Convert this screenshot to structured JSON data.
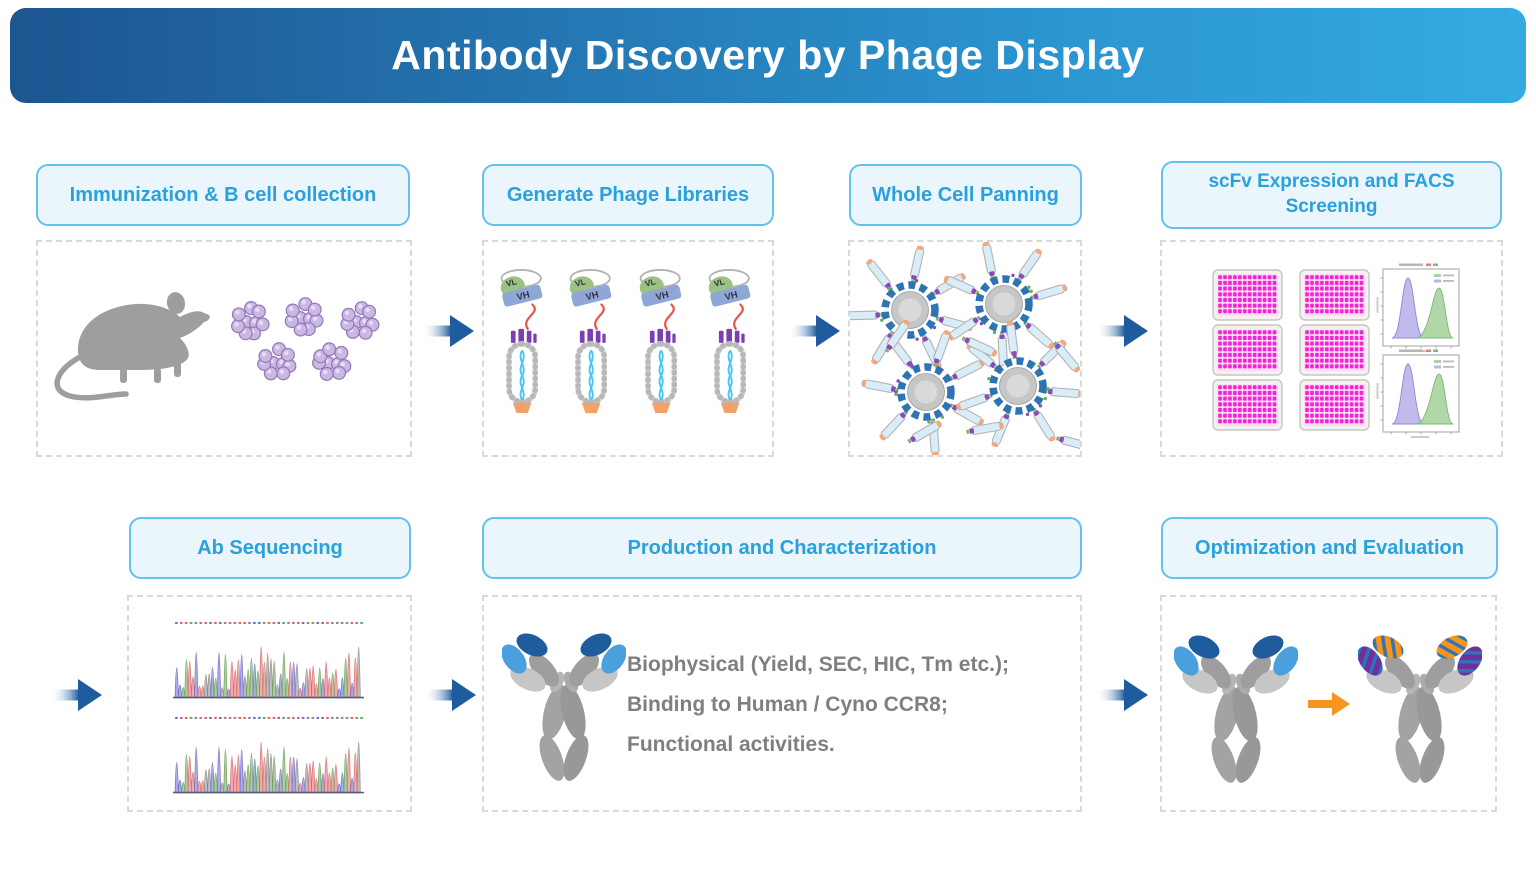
{
  "header": {
    "title": "Antibody Discovery by Phage Display"
  },
  "steps": [
    {
      "label": "Immunization & B cell collection"
    },
    {
      "label": "Generate Phage Libraries"
    },
    {
      "label": "Whole Cell Panning"
    },
    {
      "label": "scFv Expression and FACS Screening"
    },
    {
      "label": "Ab Sequencing"
    },
    {
      "label": "Production and Characterization"
    },
    {
      "label": "Optimization and Evaluation"
    }
  ],
  "production": {
    "lines": [
      "Biophysical (Yield, SEC, HIC, Tm etc.);",
      "Binding to Human / Cyno CCR8;",
      "Functional activities."
    ]
  },
  "phage": {
    "vl_label": "VL",
    "vh_label": "VH"
  },
  "colors": {
    "header_gradient_left": "#1d5590",
    "header_gradient_right": "#35aae2",
    "label_bg": "#eaf5fc",
    "label_border": "#62c1ee",
    "label_text": "#2aa0dc",
    "flow_arrow_blue": "#1f5c9e",
    "orange_arrow": "#f7941d",
    "mouse_gray": "#9e9e9e",
    "b_cell_purple": "#cab7e2",
    "b_cell_outline": "#9277bb",
    "well_magenta": "#f215cf",
    "antibody_tip_dark_blue": "#1f5c9e",
    "antibody_tip_light_blue": "#4a9fdd",
    "stripe_orange": "#f7941d",
    "stripe_purple": "#7030a0",
    "stripe_blue": "#2e75b6",
    "phage_dna_cyan": "#45c6f0",
    "phage_tail_orange": "#f2a269",
    "phage_p3_purple": "#7a3fb0",
    "panning_ring_blue": "#2e74b5"
  }
}
